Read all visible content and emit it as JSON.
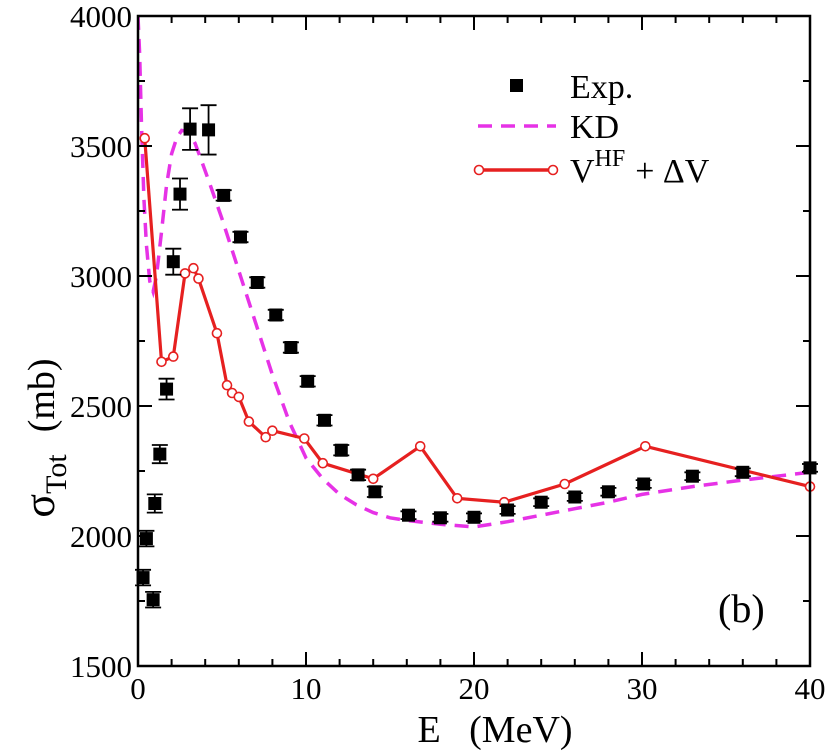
{
  "chart_data": {
    "type": "scatter",
    "title": "",
    "xlabel": "E   (MeV)",
    "ylabel_symbol": "σ",
    "ylabel_sub": "Tot",
    "ylabel_unit": "(mb)",
    "panel_label": "(b)",
    "xlim": [
      0,
      40
    ],
    "ylim": [
      1500,
      4000
    ],
    "x_ticks": [
      0,
      10,
      20,
      30,
      40
    ],
    "y_ticks": [
      1500,
      2000,
      2500,
      3000,
      3500,
      4000
    ],
    "legend": {
      "position": "top-right",
      "entries": [
        {
          "series": "exp",
          "label": "Exp."
        },
        {
          "series": "kd",
          "label": "KD"
        },
        {
          "series": "vhf",
          "label_main": "V",
          "label_sup": "HF",
          "label_rest": "+ ΔV"
        }
      ]
    },
    "series": [
      {
        "id": "exp",
        "name": "Exp.",
        "style": "square-errorbar",
        "color": "#000000",
        "points": [
          {
            "x": 0.3,
            "y": 1840,
            "err": 30
          },
          {
            "x": 0.5,
            "y": 1990,
            "err": 30
          },
          {
            "x": 0.9,
            "y": 1755,
            "err": 30
          },
          {
            "x": 1.0,
            "y": 2125,
            "err": 35
          },
          {
            "x": 1.3,
            "y": 2315,
            "err": 35
          },
          {
            "x": 1.7,
            "y": 2565,
            "err": 40
          },
          {
            "x": 2.1,
            "y": 3055,
            "err": 50
          },
          {
            "x": 2.5,
            "y": 3315,
            "err": 60
          },
          {
            "x": 3.1,
            "y": 3565,
            "err": 80
          },
          {
            "x": 4.2,
            "y": 3562,
            "err": 95
          },
          {
            "x": 5.1,
            "y": 3310,
            "err": 20
          },
          {
            "x": 6.1,
            "y": 3150,
            "err": 20
          },
          {
            "x": 7.1,
            "y": 2975,
            "err": 20
          },
          {
            "x": 8.2,
            "y": 2850,
            "err": 20
          },
          {
            "x": 9.1,
            "y": 2725,
            "err": 20
          },
          {
            "x": 10.1,
            "y": 2595,
            "err": 20
          },
          {
            "x": 11.1,
            "y": 2445,
            "err": 20
          },
          {
            "x": 12.1,
            "y": 2330,
            "err": 20
          },
          {
            "x": 13.1,
            "y": 2235,
            "err": 20
          },
          {
            "x": 14.1,
            "y": 2170,
            "err": 20
          },
          {
            "x": 16.1,
            "y": 2080,
            "err": 15
          },
          {
            "x": 18.0,
            "y": 2070,
            "err": 15
          },
          {
            "x": 20.0,
            "y": 2072,
            "err": 15
          },
          {
            "x": 22.0,
            "y": 2100,
            "err": 15
          },
          {
            "x": 24.0,
            "y": 2130,
            "err": 15
          },
          {
            "x": 26.0,
            "y": 2150,
            "err": 15
          },
          {
            "x": 28.0,
            "y": 2170,
            "err": 15
          },
          {
            "x": 30.1,
            "y": 2200,
            "err": 15
          },
          {
            "x": 33.0,
            "y": 2230,
            "err": 15
          },
          {
            "x": 36.0,
            "y": 2245,
            "err": 15
          },
          {
            "x": 40.0,
            "y": 2262,
            "err": 15
          }
        ]
      },
      {
        "id": "kd",
        "name": "KD",
        "style": "dashed",
        "color": "#e632e6",
        "x": [
          0.0,
          0.1,
          0.2,
          0.35,
          0.5,
          0.7,
          0.9,
          1.1,
          1.4,
          1.7,
          2.0,
          2.3,
          2.6,
          3.0,
          3.4,
          3.8,
          4.3,
          5.0,
          6.0,
          7.0,
          8.0,
          9.0,
          10.0,
          11.0,
          12.0,
          13.0,
          14.0,
          15.0,
          16.0,
          18.0,
          20.0,
          22.0,
          24.0,
          26.0,
          28.0,
          30.0,
          33.0,
          36.0,
          40.0
        ],
        "y": [
          4000,
          3850,
          3600,
          3300,
          3120,
          2980,
          2940,
          3000,
          3170,
          3350,
          3470,
          3530,
          3560,
          3555,
          3510,
          3440,
          3350,
          3220,
          3020,
          2820,
          2620,
          2440,
          2300,
          2220,
          2160,
          2120,
          2090,
          2070,
          2060,
          2045,
          2035,
          2055,
          2080,
          2105,
          2130,
          2160,
          2190,
          2215,
          2245
        ]
      },
      {
        "id": "vhf",
        "name": "V^HF + ΔV",
        "style": "line-circle",
        "color": "#e62020",
        "x": [
          0.4,
          1.4,
          2.1,
          2.8,
          3.3,
          3.6,
          4.7,
          5.3,
          5.6,
          6.0,
          6.6,
          7.6,
          8.0,
          9.9,
          11.0,
          14.0,
          16.8,
          19.0,
          21.8,
          25.4,
          30.2,
          40.0
        ],
        "y": [
          3530,
          2670,
          2690,
          3010,
          3030,
          2990,
          2780,
          2580,
          2550,
          2535,
          2440,
          2380,
          2405,
          2375,
          2280,
          2220,
          2345,
          2145,
          2130,
          2200,
          2345,
          2190
        ]
      }
    ]
  }
}
